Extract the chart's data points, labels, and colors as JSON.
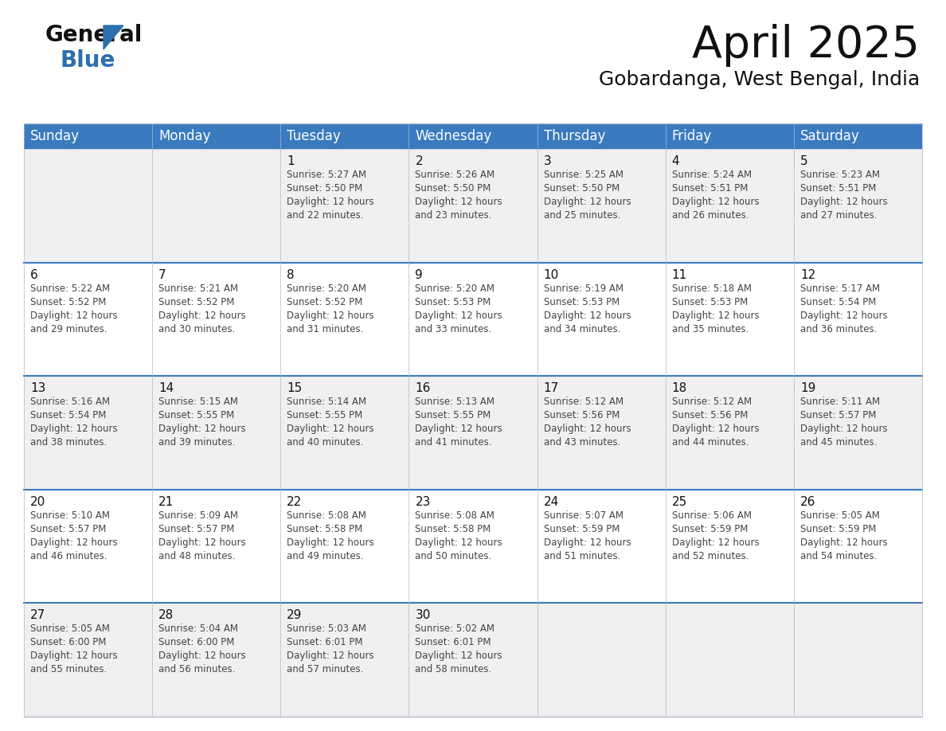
{
  "title": "April 2025",
  "subtitle": "Gobardanga, West Bengal, India",
  "header_bg": "#3a7bbf",
  "header_text": "#ffffff",
  "cell_bg_odd": "#f0f0f0",
  "cell_bg_even": "#ffffff",
  "day_names": [
    "Sunday",
    "Monday",
    "Tuesday",
    "Wednesday",
    "Thursday",
    "Friday",
    "Saturday"
  ],
  "days": [
    {
      "day": 1,
      "col": 2,
      "row": 0,
      "sunrise": "5:27 AM",
      "sunset": "5:50 PM",
      "daylight": "12 hours and 22 minutes."
    },
    {
      "day": 2,
      "col": 3,
      "row": 0,
      "sunrise": "5:26 AM",
      "sunset": "5:50 PM",
      "daylight": "12 hours and 23 minutes."
    },
    {
      "day": 3,
      "col": 4,
      "row": 0,
      "sunrise": "5:25 AM",
      "sunset": "5:50 PM",
      "daylight": "12 hours and 25 minutes."
    },
    {
      "day": 4,
      "col": 5,
      "row": 0,
      "sunrise": "5:24 AM",
      "sunset": "5:51 PM",
      "daylight": "12 hours and 26 minutes."
    },
    {
      "day": 5,
      "col": 6,
      "row": 0,
      "sunrise": "5:23 AM",
      "sunset": "5:51 PM",
      "daylight": "12 hours and 27 minutes."
    },
    {
      "day": 6,
      "col": 0,
      "row": 1,
      "sunrise": "5:22 AM",
      "sunset": "5:52 PM",
      "daylight": "12 hours and 29 minutes."
    },
    {
      "day": 7,
      "col": 1,
      "row": 1,
      "sunrise": "5:21 AM",
      "sunset": "5:52 PM",
      "daylight": "12 hours and 30 minutes."
    },
    {
      "day": 8,
      "col": 2,
      "row": 1,
      "sunrise": "5:20 AM",
      "sunset": "5:52 PM",
      "daylight": "12 hours and 31 minutes."
    },
    {
      "day": 9,
      "col": 3,
      "row": 1,
      "sunrise": "5:20 AM",
      "sunset": "5:53 PM",
      "daylight": "12 hours and 33 minutes."
    },
    {
      "day": 10,
      "col": 4,
      "row": 1,
      "sunrise": "5:19 AM",
      "sunset": "5:53 PM",
      "daylight": "12 hours and 34 minutes."
    },
    {
      "day": 11,
      "col": 5,
      "row": 1,
      "sunrise": "5:18 AM",
      "sunset": "5:53 PM",
      "daylight": "12 hours and 35 minutes."
    },
    {
      "day": 12,
      "col": 6,
      "row": 1,
      "sunrise": "5:17 AM",
      "sunset": "5:54 PM",
      "daylight": "12 hours and 36 minutes."
    },
    {
      "day": 13,
      "col": 0,
      "row": 2,
      "sunrise": "5:16 AM",
      "sunset": "5:54 PM",
      "daylight": "12 hours and 38 minutes."
    },
    {
      "day": 14,
      "col": 1,
      "row": 2,
      "sunrise": "5:15 AM",
      "sunset": "5:55 PM",
      "daylight": "12 hours and 39 minutes."
    },
    {
      "day": 15,
      "col": 2,
      "row": 2,
      "sunrise": "5:14 AM",
      "sunset": "5:55 PM",
      "daylight": "12 hours and 40 minutes."
    },
    {
      "day": 16,
      "col": 3,
      "row": 2,
      "sunrise": "5:13 AM",
      "sunset": "5:55 PM",
      "daylight": "12 hours and 41 minutes."
    },
    {
      "day": 17,
      "col": 4,
      "row": 2,
      "sunrise": "5:12 AM",
      "sunset": "5:56 PM",
      "daylight": "12 hours and 43 minutes."
    },
    {
      "day": 18,
      "col": 5,
      "row": 2,
      "sunrise": "5:12 AM",
      "sunset": "5:56 PM",
      "daylight": "12 hours and 44 minutes."
    },
    {
      "day": 19,
      "col": 6,
      "row": 2,
      "sunrise": "5:11 AM",
      "sunset": "5:57 PM",
      "daylight": "12 hours and 45 minutes."
    },
    {
      "day": 20,
      "col": 0,
      "row": 3,
      "sunrise": "5:10 AM",
      "sunset": "5:57 PM",
      "daylight": "12 hours and 46 minutes."
    },
    {
      "day": 21,
      "col": 1,
      "row": 3,
      "sunrise": "5:09 AM",
      "sunset": "5:57 PM",
      "daylight": "12 hours and 48 minutes."
    },
    {
      "day": 22,
      "col": 2,
      "row": 3,
      "sunrise": "5:08 AM",
      "sunset": "5:58 PM",
      "daylight": "12 hours and 49 minutes."
    },
    {
      "day": 23,
      "col": 3,
      "row": 3,
      "sunrise": "5:08 AM",
      "sunset": "5:58 PM",
      "daylight": "12 hours and 50 minutes."
    },
    {
      "day": 24,
      "col": 4,
      "row": 3,
      "sunrise": "5:07 AM",
      "sunset": "5:59 PM",
      "daylight": "12 hours and 51 minutes."
    },
    {
      "day": 25,
      "col": 5,
      "row": 3,
      "sunrise": "5:06 AM",
      "sunset": "5:59 PM",
      "daylight": "12 hours and 52 minutes."
    },
    {
      "day": 26,
      "col": 6,
      "row": 3,
      "sunrise": "5:05 AM",
      "sunset": "5:59 PM",
      "daylight": "12 hours and 54 minutes."
    },
    {
      "day": 27,
      "col": 0,
      "row": 4,
      "sunrise": "5:05 AM",
      "sunset": "6:00 PM",
      "daylight": "12 hours and 55 minutes."
    },
    {
      "day": 28,
      "col": 1,
      "row": 4,
      "sunrise": "5:04 AM",
      "sunset": "6:00 PM",
      "daylight": "12 hours and 56 minutes."
    },
    {
      "day": 29,
      "col": 2,
      "row": 4,
      "sunrise": "5:03 AM",
      "sunset": "6:01 PM",
      "daylight": "12 hours and 57 minutes."
    },
    {
      "day": 30,
      "col": 3,
      "row": 4,
      "sunrise": "5:02 AM",
      "sunset": "6:01 PM",
      "daylight": "12 hours and 58 minutes."
    }
  ],
  "background_color": "#ffffff",
  "grid_line_color": "#b0b8c8",
  "row_divider_color": "#3a7bbf",
  "text_color": "#444444",
  "day_number_color": "#111111",
  "cell_detail_fontsize": 8.5,
  "day_number_fontsize": 11,
  "day_header_fontsize": 12,
  "title_fontsize": 40,
  "subtitle_fontsize": 18
}
